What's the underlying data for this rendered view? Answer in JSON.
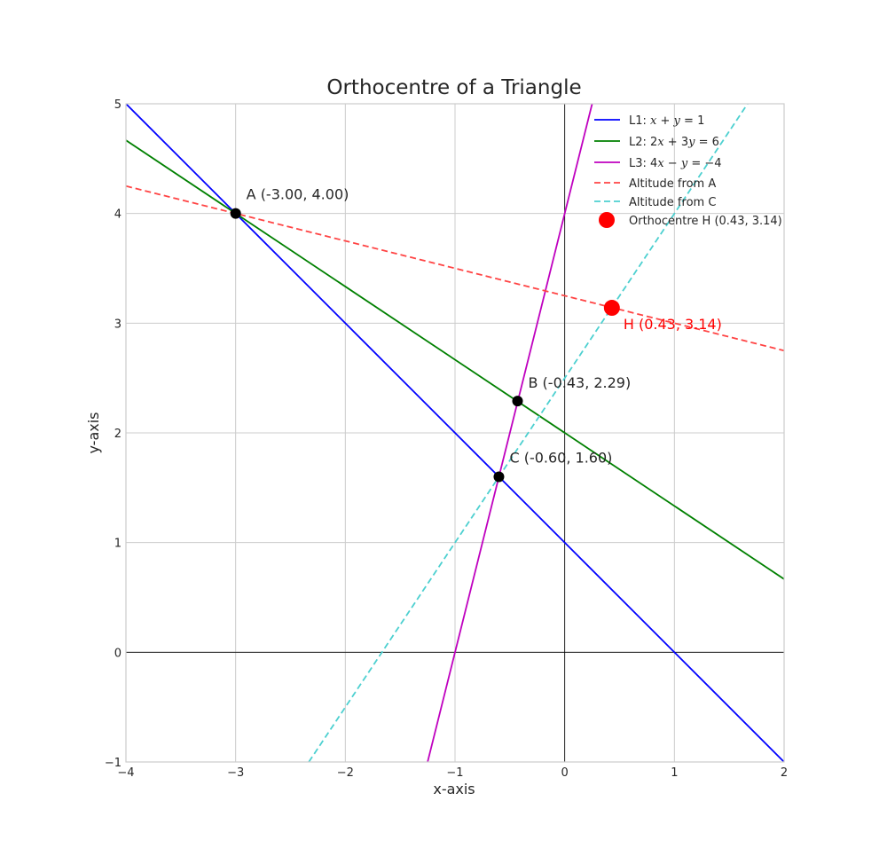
{
  "chart_data": {
    "type": "line",
    "title": "Orthocentre of a Triangle",
    "xlabel": "x-axis",
    "ylabel": "y-axis",
    "xlim": [
      -4,
      2
    ],
    "ylim": [
      -1,
      5
    ],
    "grid": true,
    "legend_position": "top-right",
    "x_ticks": [
      -4,
      -3,
      -2,
      -1,
      0,
      1,
      2
    ],
    "x_tick_labels": [
      "−4",
      "−3",
      "−2",
      "−1",
      "0",
      "1",
      "2"
    ],
    "y_ticks": [
      -1,
      0,
      1,
      2,
      3,
      4,
      5
    ],
    "y_tick_labels": [
      "−1",
      "0",
      "1",
      "2",
      "3",
      "4",
      "5"
    ],
    "series": [
      {
        "name": "L1: x + y = 1",
        "legend_math": "L1: $x + y = 1$",
        "style": "solid",
        "color": "#0000ff",
        "x": [
          -4,
          2
        ],
        "y": [
          5,
          -1
        ]
      },
      {
        "name": "L2: 2x + 3y = 6",
        "legend_math": "L2: $2x + 3y = 6$",
        "style": "solid",
        "color": "#008000",
        "x": [
          -4,
          2
        ],
        "y": [
          4.667,
          0.667
        ]
      },
      {
        "name": "L3: 4x − y = −4",
        "legend_math": "L3: $4x - y = -4$",
        "style": "solid",
        "color": "#bf00bf",
        "x": [
          -1.25,
          0.25
        ],
        "y": [
          -1,
          5
        ]
      },
      {
        "name": "Altitude from A",
        "style": "dashed",
        "color": "#ff4444",
        "x": [
          -4,
          2
        ],
        "y": [
          4.25,
          2.75
        ]
      },
      {
        "name": "Altitude from C",
        "style": "dashed",
        "color": "#4dd0d0",
        "x": [
          -2.333,
          1.667
        ],
        "y": [
          -1,
          5
        ]
      }
    ],
    "points": [
      {
        "label": "A (-3.00, 4.00)",
        "x": -3.0,
        "y": 4.0,
        "color": "#000000"
      },
      {
        "label": "B (-0.43, 2.29)",
        "x": -0.43,
        "y": 2.29,
        "color": "#000000"
      },
      {
        "label": "C (-0.60, 1.60)",
        "x": -0.6,
        "y": 1.6,
        "color": "#000000"
      },
      {
        "label": "H (0.43, 3.14)",
        "x": 0.43,
        "y": 3.14,
        "color": "#ff0000"
      }
    ],
    "orthocentre_legend": "Orthocentre H (0.43, 3.14)",
    "colors": {
      "l1": "#0000ff",
      "l2": "#008000",
      "l3": "#bf00bf",
      "alt_a": "#ff4444",
      "alt_c": "#4dd0d0",
      "ortho": "#ff0000",
      "vertex": "#000000"
    }
  }
}
